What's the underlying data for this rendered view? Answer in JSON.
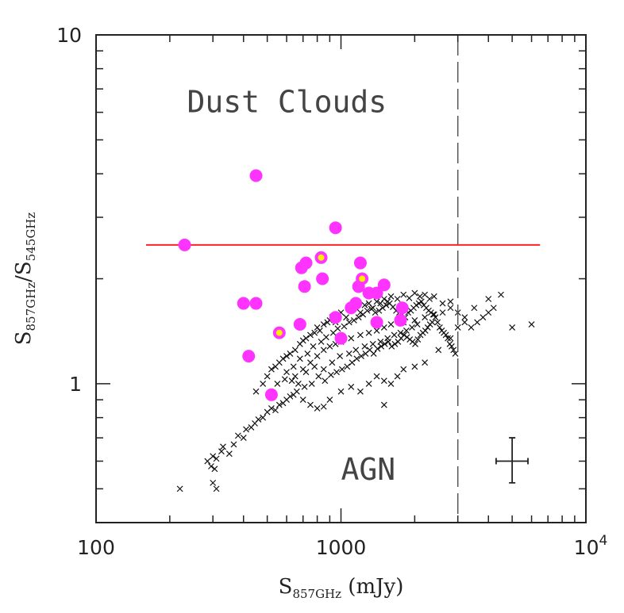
{
  "chart_data": {
    "type": "scatter",
    "xscale": "log",
    "yscale": "log",
    "xlim": [
      100,
      10000
    ],
    "ylim": [
      0.4,
      10
    ],
    "xticks": [
      {
        "value": 100,
        "label": "100"
      },
      {
        "value": 1000,
        "label": "1000"
      },
      {
        "value": 10000,
        "label": "10",
        "exponent": "4"
      }
    ],
    "yticks": [
      {
        "value": 1,
        "label": "1"
      },
      {
        "value": 10,
        "label": "10"
      }
    ],
    "xlabel": {
      "main": "S",
      "sub": "857GHz",
      "rest": " (mJy)"
    },
    "ylabel": {
      "main": "S",
      "sub": "857GHz",
      "sep": "/",
      "main2": "S",
      "sub2": "545GHz"
    },
    "grid": false,
    "annotations": [
      {
        "text": "Dust Clouds",
        "x": 235,
        "y": 6.0
      },
      {
        "text": "AGN",
        "x": 1000,
        "y": 0.53
      }
    ],
    "hline": {
      "y": 2.5,
      "x0": 160,
      "x1": 6500,
      "color": "#ff2222"
    },
    "vline": {
      "x": 3000,
      "style": "dashed",
      "color": "#555555"
    },
    "error_bar": {
      "x": 5000,
      "y": 0.6,
      "x_lo": 4300,
      "x_hi": 5800,
      "y_lo": 0.52,
      "y_hi": 0.7
    },
    "crosses": {
      "color": "#111111",
      "points": [
        [
          220,
          0.5
        ],
        [
          300,
          0.52
        ],
        [
          310,
          0.5
        ],
        [
          305,
          0.57
        ],
        [
          295,
          0.58
        ],
        [
          285,
          0.6
        ],
        [
          300,
          0.62
        ],
        [
          310,
          0.61
        ],
        [
          325,
          0.64
        ],
        [
          330,
          0.66
        ],
        [
          350,
          0.63
        ],
        [
          365,
          0.67
        ],
        [
          380,
          0.71
        ],
        [
          400,
          0.7
        ],
        [
          410,
          0.74
        ],
        [
          430,
          0.75
        ],
        [
          445,
          0.77
        ],
        [
          460,
          0.79
        ],
        [
          480,
          0.8
        ],
        [
          500,
          0.83
        ],
        [
          520,
          0.85
        ],
        [
          540,
          0.84
        ],
        [
          560,
          0.87
        ],
        [
          580,
          0.88
        ],
        [
          600,
          0.9
        ],
        [
          620,
          0.92
        ],
        [
          640,
          0.93
        ],
        [
          660,
          0.95
        ],
        [
          700,
          0.9
        ],
        [
          750,
          0.87
        ],
        [
          800,
          0.85
        ],
        [
          850,
          0.86
        ],
        [
          900,
          0.9
        ],
        [
          1000,
          0.95
        ],
        [
          1100,
          0.98
        ],
        [
          1200,
          0.95
        ],
        [
          1300,
          1.0
        ],
        [
          1400,
          1.05
        ],
        [
          1500,
          1.02
        ],
        [
          1600,
          1.0
        ],
        [
          1700,
          1.05
        ],
        [
          1800,
          1.1
        ],
        [
          2000,
          1.12
        ],
        [
          2200,
          1.15
        ],
        [
          2500,
          1.25
        ],
        [
          2800,
          1.35
        ],
        [
          3000,
          1.45
        ],
        [
          3200,
          1.55
        ],
        [
          3500,
          1.65
        ],
        [
          4000,
          1.75
        ],
        [
          4200,
          1.65
        ],
        [
          4500,
          1.8
        ],
        [
          5000,
          1.45
        ],
        [
          6000,
          1.48
        ],
        [
          1500,
          0.87
        ],
        [
          450,
          0.95
        ],
        [
          480,
          1.0
        ],
        [
          500,
          1.05
        ],
        [
          520,
          1.1
        ],
        [
          540,
          1.12
        ],
        [
          560,
          1.15
        ],
        [
          580,
          1.18
        ],
        [
          600,
          1.2
        ],
        [
          620,
          1.22
        ],
        [
          650,
          1.25
        ],
        [
          680,
          1.3
        ],
        [
          700,
          1.33
        ],
        [
          720,
          1.35
        ],
        [
          750,
          1.38
        ],
        [
          780,
          1.4
        ],
        [
          800,
          1.45
        ],
        [
          820,
          1.42
        ],
        [
          850,
          1.48
        ],
        [
          880,
          1.5
        ],
        [
          900,
          1.52
        ],
        [
          920,
          1.55
        ],
        [
          950,
          1.5
        ],
        [
          980,
          1.58
        ],
        [
          1000,
          1.6
        ],
        [
          1050,
          1.55
        ],
        [
          1100,
          1.62
        ],
        [
          1150,
          1.65
        ],
        [
          1200,
          1.6
        ],
        [
          1250,
          1.68
        ],
        [
          1300,
          1.7
        ],
        [
          1350,
          1.65
        ],
        [
          1400,
          1.72
        ],
        [
          1450,
          1.7
        ],
        [
          1500,
          1.75
        ],
        [
          1550,
          1.72
        ],
        [
          1600,
          1.78
        ],
        [
          1700,
          1.75
        ],
        [
          1800,
          1.8
        ],
        [
          1900,
          1.76
        ],
        [
          2000,
          1.82
        ],
        [
          2100,
          1.78
        ],
        [
          2200,
          1.8
        ],
        [
          2300,
          1.75
        ],
        [
          2400,
          1.78
        ],
        [
          2600,
          1.7
        ],
        [
          2800,
          1.72
        ],
        [
          3000,
          1.6
        ],
        [
          3200,
          1.5
        ],
        [
          3400,
          1.45
        ],
        [
          3600,
          1.5
        ],
        [
          3800,
          1.55
        ],
        [
          4000,
          1.6
        ],
        [
          700,
          1.1
        ],
        [
          750,
          1.15
        ],
        [
          800,
          1.2
        ],
        [
          850,
          1.25
        ],
        [
          900,
          1.28
        ],
        [
          950,
          1.3
        ],
        [
          1000,
          1.32
        ],
        [
          1100,
          1.35
        ],
        [
          1200,
          1.38
        ],
        [
          1300,
          1.4
        ],
        [
          1400,
          1.42
        ],
        [
          1500,
          1.45
        ],
        [
          1600,
          1.48
        ],
        [
          1800,
          1.5
        ],
        [
          2000,
          1.52
        ],
        [
          2200,
          1.55
        ],
        [
          2400,
          1.58
        ],
        [
          2600,
          1.6
        ],
        [
          2800,
          1.65
        ],
        [
          650,
          1.05
        ],
        [
          720,
          1.08
        ],
        [
          780,
          1.12
        ],
        [
          850,
          1.1
        ],
        [
          920,
          1.15
        ],
        [
          990,
          1.2
        ],
        [
          1080,
          1.22
        ],
        [
          1150,
          1.25
        ],
        [
          1250,
          1.28
        ],
        [
          1350,
          1.3
        ],
        [
          1450,
          1.32
        ],
        [
          1550,
          1.35
        ],
        [
          1650,
          1.38
        ],
        [
          1750,
          1.4
        ],
        [
          1850,
          1.42
        ],
        [
          1950,
          1.45
        ],
        [
          2050,
          1.48
        ],
        [
          600,
          1.08
        ],
        [
          640,
          1.12
        ],
        [
          680,
          1.18
        ],
        [
          730,
          1.22
        ],
        [
          770,
          1.28
        ],
        [
          830,
          1.32
        ],
        [
          870,
          1.36
        ],
        [
          930,
          1.4
        ],
        [
          970,
          1.44
        ],
        [
          1030,
          1.46
        ],
        [
          1080,
          1.5
        ],
        [
          1130,
          1.52
        ],
        [
          1180,
          1.55
        ],
        [
          1230,
          1.58
        ],
        [
          1280,
          1.62
        ],
        [
          1330,
          1.64
        ],
        [
          1380,
          1.6
        ],
        [
          1430,
          1.62
        ],
        [
          1480,
          1.65
        ],
        [
          1530,
          1.68
        ],
        [
          1580,
          1.7
        ],
        [
          1630,
          1.66
        ],
        [
          1680,
          1.62
        ],
        [
          1730,
          1.6
        ],
        [
          1780,
          1.58
        ],
        [
          1830,
          1.55
        ],
        [
          1880,
          1.6
        ],
        [
          1930,
          1.62
        ],
        [
          1980,
          1.65
        ],
        [
          2030,
          1.68
        ],
        [
          2080,
          1.7
        ],
        [
          2130,
          1.72
        ],
        [
          2180,
          1.68
        ],
        [
          2230,
          1.65
        ],
        [
          2280,
          1.62
        ],
        [
          2330,
          1.6
        ],
        [
          2380,
          1.58
        ],
        [
          2430,
          1.55
        ],
        [
          2480,
          1.5
        ],
        [
          2530,
          1.45
        ],
        [
          2580,
          1.42
        ],
        [
          2630,
          1.4
        ],
        [
          2680,
          1.38
        ],
        [
          2730,
          1.35
        ],
        [
          2780,
          1.3
        ],
        [
          2830,
          1.28
        ],
        [
          2880,
          1.25
        ],
        [
          2930,
          1.22
        ],
        [
          550,
          1.0
        ],
        [
          590,
          1.03
        ],
        [
          630,
          1.02
        ],
        [
          670,
          1.0
        ],
        [
          710,
          0.98
        ],
        [
          760,
          1.0
        ],
        [
          810,
          1.05
        ],
        [
          860,
          1.02
        ],
        [
          910,
          1.06
        ],
        [
          960,
          1.08
        ],
        [
          1010,
          1.1
        ],
        [
          1060,
          1.12
        ],
        [
          1110,
          1.15
        ],
        [
          1160,
          1.18
        ],
        [
          1210,
          1.2
        ],
        [
          1260,
          1.22
        ],
        [
          1310,
          1.25
        ],
        [
          1360,
          1.22
        ],
        [
          1410,
          1.26
        ],
        [
          1460,
          1.28
        ],
        [
          1510,
          1.3
        ],
        [
          1560,
          1.32
        ],
        [
          1610,
          1.28
        ],
        [
          1660,
          1.3
        ],
        [
          1710,
          1.32
        ],
        [
          1760,
          1.35
        ],
        [
          1810,
          1.38
        ],
        [
          1860,
          1.36
        ],
        [
          1910,
          1.34
        ],
        [
          1960,
          1.32
        ],
        [
          2010,
          1.3
        ],
        [
          2060,
          1.34
        ],
        [
          2110,
          1.38
        ],
        [
          2160,
          1.4
        ],
        [
          2210,
          1.42
        ],
        [
          2260,
          1.45
        ],
        [
          2310,
          1.48
        ],
        [
          2360,
          1.5
        ]
      ]
    },
    "circles": {
      "color": "#ff33ff",
      "points": [
        [
          230,
          2.5
        ],
        [
          450,
          3.95
        ],
        [
          400,
          1.7
        ],
        [
          450,
          1.7
        ],
        [
          420,
          1.2
        ],
        [
          520,
          0.93
        ],
        [
          680,
          1.48
        ],
        [
          690,
          2.15
        ],
        [
          710,
          1.9
        ],
        [
          720,
          2.22
        ],
        [
          830,
          2.3
        ],
        [
          840,
          2.0
        ],
        [
          950,
          2.8
        ],
        [
          950,
          1.55
        ],
        [
          1000,
          1.35
        ],
        [
          1150,
          1.7
        ],
        [
          1180,
          1.9
        ],
        [
          1200,
          2.22
        ],
        [
          1220,
          2.0
        ],
        [
          1300,
          1.82
        ],
        [
          1400,
          1.82
        ],
        [
          1400,
          1.5
        ],
        [
          1500,
          1.92
        ],
        [
          1750,
          1.52
        ],
        [
          1780,
          1.65
        ],
        [
          560,
          1.4
        ],
        [
          1100,
          1.65
        ]
      ],
      "highlighted": [
        [
          830,
          2.3
        ],
        [
          1220,
          2.0
        ],
        [
          560,
          1.4
        ]
      ],
      "highlight_color": "#ffee00"
    }
  }
}
